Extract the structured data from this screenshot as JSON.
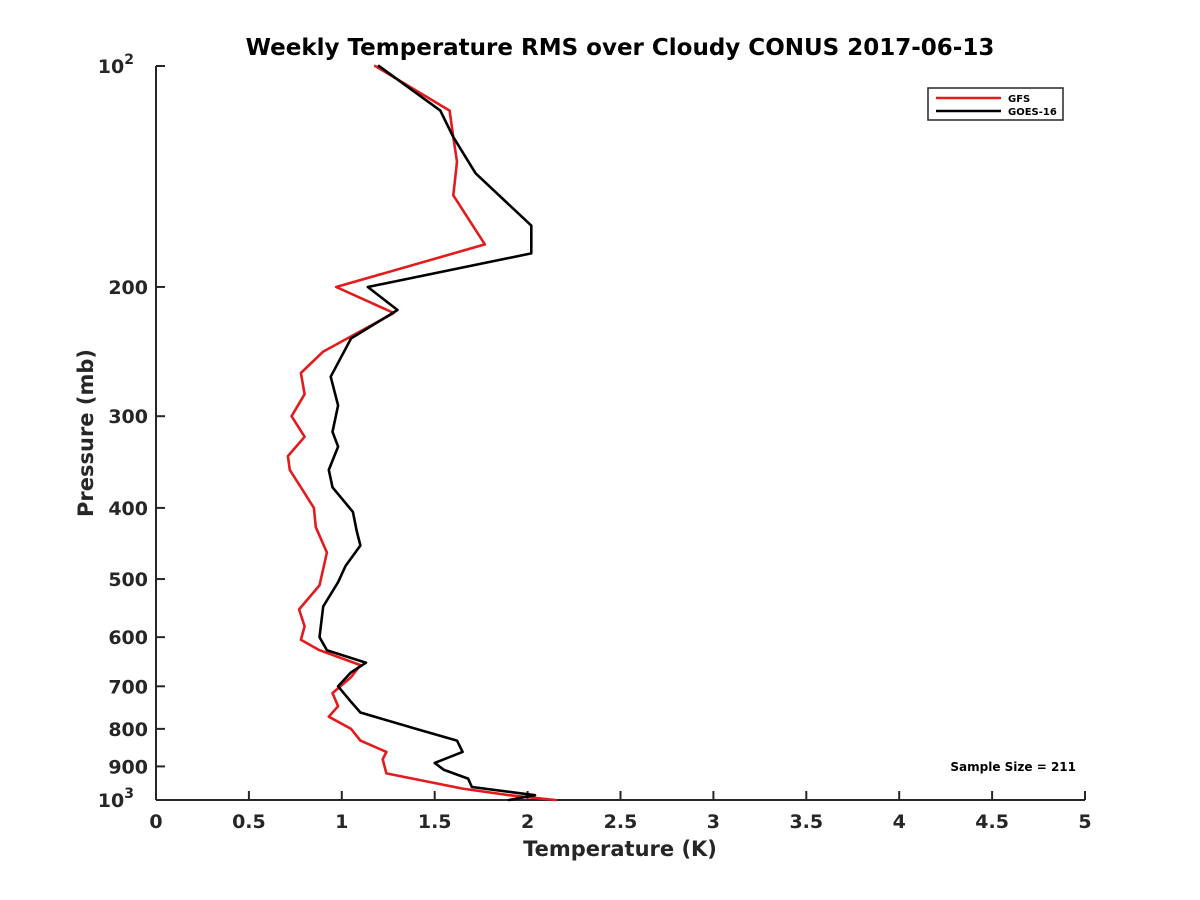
{
  "chart_data": {
    "type": "line",
    "title": "Weekly Temperature RMS over Cloudy CONUS 2017-06-13",
    "xlabel": "Temperature (K)",
    "ylabel": "Pressure (mb)",
    "xlim": [
      0,
      5
    ],
    "ylim": [
      100,
      1000
    ],
    "y_scale": "log",
    "y_reversed": true,
    "grid": false,
    "x_ticks": [
      {
        "value": 0,
        "label": "0"
      },
      {
        "value": 0.5,
        "label": "0.5"
      },
      {
        "value": 1,
        "label": "1"
      },
      {
        "value": 1.5,
        "label": "1.5"
      },
      {
        "value": 2,
        "label": "2"
      },
      {
        "value": 2.5,
        "label": "2.5"
      },
      {
        "value": 3,
        "label": "3"
      },
      {
        "value": 3.5,
        "label": "3.5"
      },
      {
        "value": 4,
        "label": "4"
      },
      {
        "value": 4.5,
        "label": "4.5"
      },
      {
        "value": 5,
        "label": "5"
      }
    ],
    "y_ticks": [
      {
        "value": 100,
        "base": "10",
        "exp": "2"
      },
      {
        "value": 200,
        "label": "200"
      },
      {
        "value": 300,
        "label": "300"
      },
      {
        "value": 400,
        "label": "400"
      },
      {
        "value": 500,
        "label": "500"
      },
      {
        "value": 600,
        "label": "600"
      },
      {
        "value": 700,
        "label": "700"
      },
      {
        "value": 800,
        "label": "800"
      },
      {
        "value": 900,
        "label": "900"
      },
      {
        "value": 1000,
        "base": "10",
        "exp": "3"
      }
    ],
    "legend_position": "top-right",
    "annotation": "Sample Size = 211",
    "series": [
      {
        "name": "GFS",
        "color": "#e41a1c",
        "points": [
          [
            1.18,
            100
          ],
          [
            1.58,
            115
          ],
          [
            1.6,
            125
          ],
          [
            1.62,
            135
          ],
          [
            1.6,
            150
          ],
          [
            1.77,
            175
          ],
          [
            0.97,
            200
          ],
          [
            1.28,
            217
          ],
          [
            0.9,
            245
          ],
          [
            0.78,
            262
          ],
          [
            0.8,
            280
          ],
          [
            0.73,
            300
          ],
          [
            0.8,
            320
          ],
          [
            0.71,
            340
          ],
          [
            0.72,
            355
          ],
          [
            0.78,
            375
          ],
          [
            0.85,
            400
          ],
          [
            0.86,
            425
          ],
          [
            0.92,
            460
          ],
          [
            0.88,
            510
          ],
          [
            0.77,
            550
          ],
          [
            0.8,
            580
          ],
          [
            0.78,
            605
          ],
          [
            0.88,
            625
          ],
          [
            1.1,
            655
          ],
          [
            1.05,
            680
          ],
          [
            0.95,
            715
          ],
          [
            0.98,
            745
          ],
          [
            0.93,
            770
          ],
          [
            1.05,
            800
          ],
          [
            1.1,
            830
          ],
          [
            1.24,
            860
          ],
          [
            1.22,
            880
          ],
          [
            1.24,
            920
          ],
          [
            1.65,
            965
          ],
          [
            1.9,
            985
          ],
          [
            2.15,
            1000
          ]
        ]
      },
      {
        "name": "GOES-16",
        "color": "#000000",
        "points": [
          [
            1.2,
            100
          ],
          [
            1.53,
            115
          ],
          [
            1.6,
            125
          ],
          [
            1.72,
            140
          ],
          [
            2.02,
            165
          ],
          [
            2.02,
            180
          ],
          [
            1.14,
            200
          ],
          [
            1.3,
            215
          ],
          [
            1.05,
            235
          ],
          [
            0.94,
            265
          ],
          [
            0.98,
            290
          ],
          [
            0.95,
            315
          ],
          [
            0.98,
            330
          ],
          [
            0.93,
            355
          ],
          [
            0.95,
            375
          ],
          [
            1.06,
            405
          ],
          [
            1.08,
            430
          ],
          [
            1.1,
            450
          ],
          [
            1.02,
            480
          ],
          [
            0.98,
            505
          ],
          [
            0.9,
            545
          ],
          [
            0.88,
            600
          ],
          [
            0.92,
            625
          ],
          [
            1.13,
            650
          ],
          [
            1.05,
            670
          ],
          [
            0.98,
            700
          ],
          [
            1.05,
            735
          ],
          [
            1.1,
            760
          ],
          [
            1.4,
            800
          ],
          [
            1.62,
            830
          ],
          [
            1.65,
            860
          ],
          [
            1.5,
            890
          ],
          [
            1.55,
            910
          ],
          [
            1.68,
            935
          ],
          [
            1.7,
            960
          ],
          [
            2.04,
            985
          ],
          [
            1.9,
            1000
          ]
        ]
      }
    ]
  }
}
